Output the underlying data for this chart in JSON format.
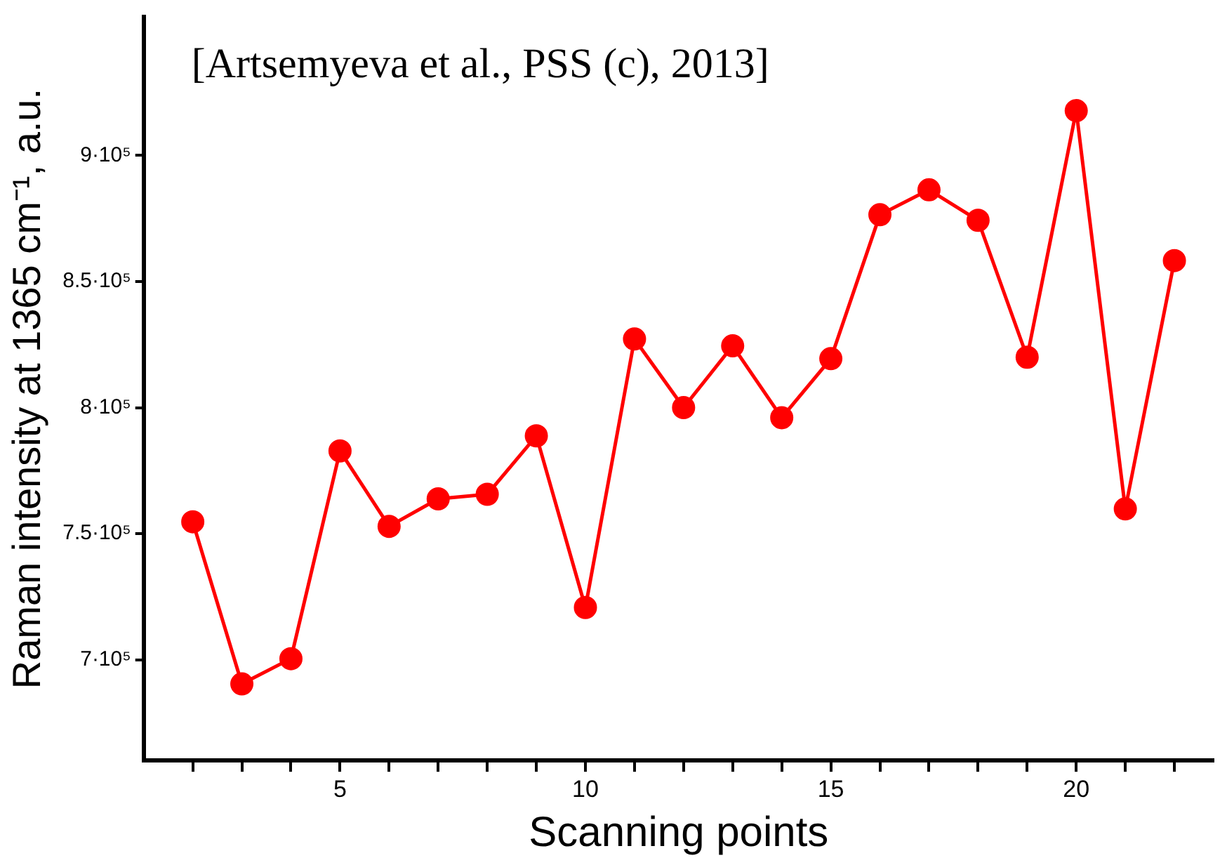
{
  "chart_data": {
    "type": "line",
    "xlabel": "Scanning points",
    "ylabel": "Raman intensity at 1365 cm⁻¹, a.u.",
    "annotations": [
      "[Artsemyeva et al., PSS (c), 2013]"
    ],
    "x": [
      2,
      3,
      4,
      5,
      6,
      7,
      8,
      9,
      10,
      11,
      12,
      13,
      14,
      15,
      16,
      17,
      18,
      19,
      20,
      21,
      22
    ],
    "series": [
      {
        "color": "#ff0000",
        "values": [
          754700,
          690400,
          700400,
          782800,
          752900,
          763800,
          765600,
          788800,
          720700,
          827200,
          800000,
          824500,
          796000,
          819400,
          876500,
          886400,
          874300,
          820000,
          917800,
          759800,
          858300
        ]
      }
    ],
    "xlim": [
      1,
      22.8
    ],
    "xticks": [
      {
        "value": 2,
        "label": null
      },
      {
        "value": 3,
        "label": null
      },
      {
        "value": 4,
        "label": null
      },
      5,
      {
        "value": 6,
        "label": null
      },
      {
        "value": 7,
        "label": null
      },
      {
        "value": 8,
        "label": null
      },
      {
        "value": 9,
        "label": null
      },
      10,
      {
        "value": 11,
        "label": null
      },
      {
        "value": 12,
        "label": null
      },
      {
        "value": 13,
        "label": null
      },
      {
        "value": 14,
        "label": null
      },
      15,
      {
        "value": 16,
        "label": null
      },
      {
        "value": 17,
        "label": null
      },
      {
        "value": 18,
        "label": null
      },
      {
        "value": 19,
        "label": null
      },
      20,
      {
        "value": 21,
        "label": null
      },
      {
        "value": 22,
        "label": null
      }
    ],
    "ylim": [
      660000,
      955000
    ],
    "yticks": [
      {
        "value": 700000,
        "label": "7·10⁵"
      },
      {
        "value": 750000,
        "label": "7.5·10⁵"
      },
      {
        "value": 800000,
        "label": "8·10⁵"
      },
      {
        "value": 850000,
        "label": "8.5·10⁵"
      },
      {
        "value": 900000,
        "label": "9·10⁵"
      }
    ],
    "marker": "circle",
    "line_style": "solid"
  }
}
